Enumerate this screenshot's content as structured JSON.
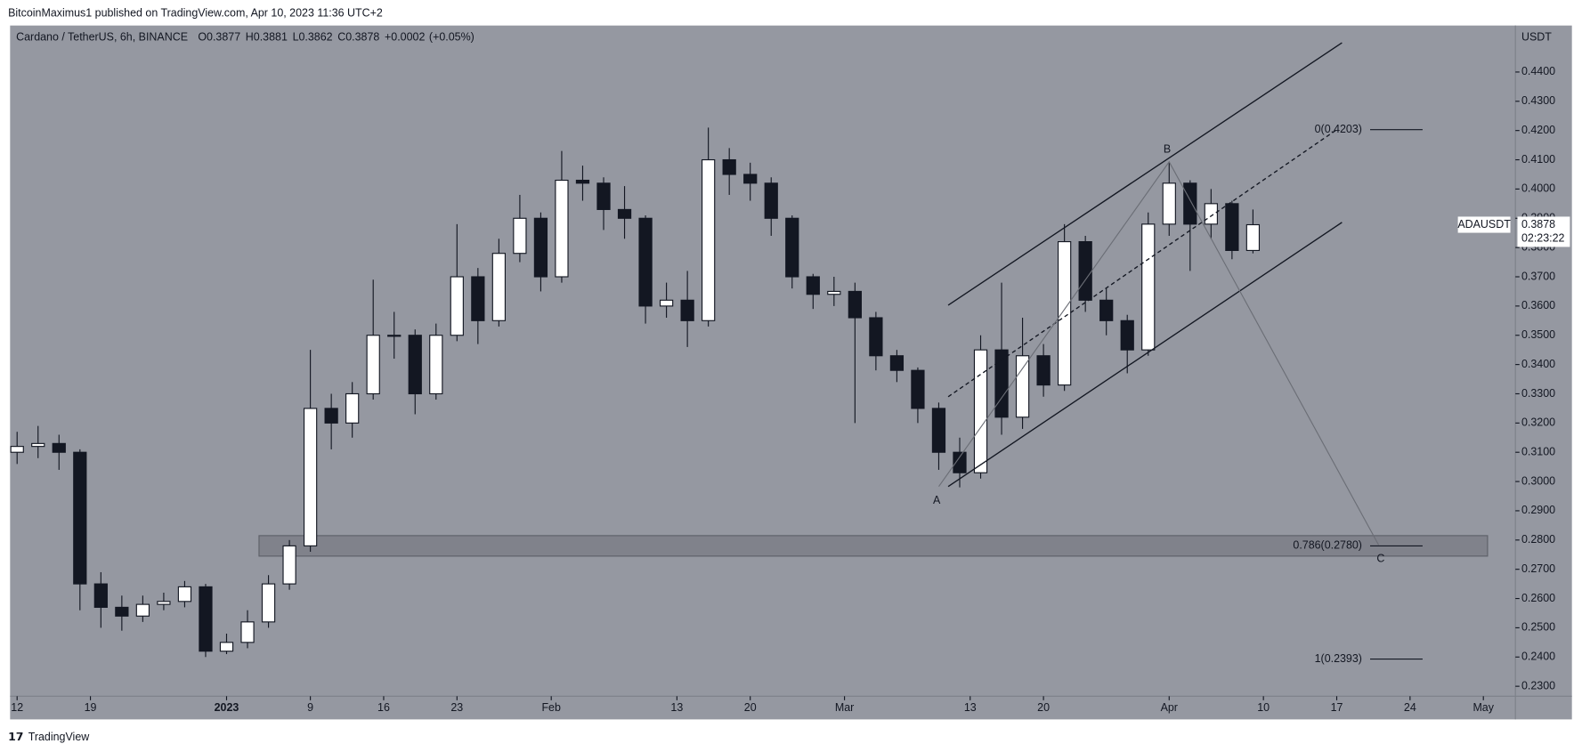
{
  "chart_data": {
    "type": "candlestick",
    "header": "BitcoinMaximus1 published on TradingView.com, Apr 10, 2023 11:36 UTC+2",
    "title": "Cardano / TetherUS, 6h, BINANCE",
    "legend_keys": [
      "O",
      "H",
      "L",
      "C"
    ],
    "legend": {
      "open": 0.3877,
      "high": 0.3881,
      "low": 0.3862,
      "close": 0.3878,
      "change": {
        "value": 0.0002,
        "label": "+0.0002"
      },
      "change_pct": {
        "value": 0.05,
        "label": "(+0.05%)"
      }
    },
    "currency": "USDT",
    "symbol": "ADAUSDT",
    "last_price": 0.3878,
    "countdown": "02:23:22",
    "footer": "TradingView",
    "up_color": "#ffffff",
    "down_color": "#131722",
    "x": [
      0,
      2,
      4,
      6,
      8,
      10,
      12,
      14,
      16,
      18,
      20,
      22,
      24,
      26,
      28,
      30,
      32,
      34,
      36,
      38,
      40,
      42,
      44,
      46,
      48,
      50,
      52,
      54,
      56,
      58,
      60,
      62,
      64,
      66,
      68,
      70,
      72,
      74,
      76,
      78,
      80,
      82,
      84,
      86,
      88,
      90,
      92,
      94,
      96,
      98,
      100,
      102,
      104,
      106,
      108,
      110,
      112,
      114,
      116,
      118
    ],
    "open": [
      0.31,
      0.312,
      0.313,
      0.31,
      0.265,
      0.257,
      0.254,
      0.258,
      0.259,
      0.264,
      0.242,
      0.245,
      0.252,
      0.265,
      0.278,
      0.325,
      0.32,
      0.33,
      0.35,
      0.35,
      0.33,
      0.35,
      0.37,
      0.355,
      0.378,
      0.39,
      0.37,
      0.403,
      0.402,
      0.393,
      0.39,
      0.36,
      0.362,
      0.355,
      0.41,
      0.405,
      0.402,
      0.39,
      0.37,
      0.364,
      0.365,
      0.356,
      0.343,
      0.338,
      0.325,
      0.31,
      0.303,
      0.345,
      0.322,
      0.343,
      0.333,
      0.382,
      0.362,
      0.355,
      0.345,
      0.388,
      0.402,
      0.388,
      0.395,
      0.379
    ],
    "high": [
      0.317,
      0.319,
      0.316,
      0.311,
      0.269,
      0.261,
      0.261,
      0.262,
      0.266,
      0.265,
      0.248,
      0.256,
      0.268,
      0.28,
      0.345,
      0.33,
      0.334,
      0.369,
      0.358,
      0.352,
      0.354,
      0.388,
      0.373,
      0.383,
      0.398,
      0.392,
      0.413,
      0.408,
      0.404,
      0.401,
      0.391,
      0.368,
      0.372,
      0.421,
      0.414,
      0.409,
      0.404,
      0.391,
      0.371,
      0.37,
      0.368,
      0.358,
      0.345,
      0.339,
      0.327,
      0.315,
      0.35,
      0.368,
      0.356,
      0.347,
      0.388,
      0.384,
      0.366,
      0.357,
      0.392,
      0.4093,
      0.403,
      0.4,
      0.396,
      0.393
    ],
    "low": [
      0.306,
      0.308,
      0.304,
      0.256,
      0.25,
      0.249,
      0.252,
      0.256,
      0.257,
      0.24,
      0.241,
      0.243,
      0.25,
      0.263,
      0.276,
      0.311,
      0.315,
      0.328,
      0.342,
      0.323,
      0.328,
      0.348,
      0.347,
      0.353,
      0.375,
      0.365,
      0.368,
      0.396,
      0.386,
      0.383,
      0.354,
      0.356,
      0.346,
      0.353,
      0.398,
      0.396,
      0.384,
      0.366,
      0.359,
      0.36,
      0.32,
      0.338,
      0.334,
      0.32,
      0.304,
      0.298,
      0.301,
      0.316,
      0.318,
      0.329,
      0.331,
      0.358,
      0.35,
      0.337,
      0.343,
      0.384,
      0.372,
      0.383,
      0.376,
      0.378
    ],
    "close": [
      0.312,
      0.313,
      0.31,
      0.265,
      0.257,
      0.254,
      0.258,
      0.259,
      0.264,
      0.242,
      0.245,
      0.252,
      0.265,
      0.278,
      0.325,
      0.32,
      0.33,
      0.35,
      0.35,
      0.33,
      0.35,
      0.37,
      0.355,
      0.378,
      0.39,
      0.37,
      0.403,
      0.402,
      0.393,
      0.39,
      0.36,
      0.362,
      0.355,
      0.41,
      0.405,
      0.402,
      0.39,
      0.37,
      0.364,
      0.365,
      0.356,
      0.343,
      0.338,
      0.325,
      0.31,
      0.303,
      0.345,
      0.322,
      0.343,
      0.333,
      0.382,
      0.362,
      0.355,
      0.345,
      0.388,
      0.402,
      0.388,
      0.395,
      0.379,
      0.3878
    ],
    "xlim": [
      -0.67,
      143.06
    ],
    "xticks": [
      {
        "value": 0,
        "label": "12"
      },
      {
        "value": 7,
        "label": "19"
      },
      {
        "value": 20,
        "label": "2023"
      },
      {
        "value": 28,
        "label": "9"
      },
      {
        "value": 35,
        "label": "16"
      },
      {
        "value": 42,
        "label": "23"
      },
      {
        "value": 51,
        "label": "Feb"
      },
      {
        "value": 63,
        "label": "13"
      },
      {
        "value": 70,
        "label": "20"
      },
      {
        "value": 79,
        "label": "Mar"
      },
      {
        "value": 91,
        "label": "13"
      },
      {
        "value": 98,
        "label": "20"
      },
      {
        "value": 110,
        "label": "Apr"
      },
      {
        "value": 119,
        "label": "10"
      },
      {
        "value": 126,
        "label": "17"
      },
      {
        "value": 133,
        "label": "24"
      },
      {
        "value": 140,
        "label": "May"
      }
    ],
    "ylim": [
      0.2266,
      0.4559
    ],
    "yticks": [
      {
        "value": 0.23,
        "label": "0.2300"
      },
      {
        "value": 0.24,
        "label": "0.2400"
      },
      {
        "value": 0.25,
        "label": "0.2500"
      },
      {
        "value": 0.26,
        "label": "0.2600"
      },
      {
        "value": 0.27,
        "label": "0.2700"
      },
      {
        "value": 0.28,
        "label": "0.2800"
      },
      {
        "value": 0.29,
        "label": "0.2900"
      },
      {
        "value": 0.3,
        "label": "0.3000"
      },
      {
        "value": 0.31,
        "label": "0.3100"
      },
      {
        "value": 0.32,
        "label": "0.3200"
      },
      {
        "value": 0.33,
        "label": "0.3300"
      },
      {
        "value": 0.34,
        "label": "0.3400"
      },
      {
        "value": 0.35,
        "label": "0.3500"
      },
      {
        "value": 0.36,
        "label": "0.3600"
      },
      {
        "value": 0.37,
        "label": "0.3700"
      },
      {
        "value": 0.38,
        "label": "0.3800"
      },
      {
        "value": 0.39,
        "label": "0.3900"
      },
      {
        "value": 0.4,
        "label": "0.4000"
      },
      {
        "value": 0.41,
        "label": "0.4100"
      },
      {
        "value": 0.42,
        "label": "0.4200"
      },
      {
        "value": 0.43,
        "label": "0.4300"
      },
      {
        "value": 0.44,
        "label": "0.4400"
      }
    ],
    "zone": {
      "x": [
        23.1,
        140.4
      ],
      "y": [
        0.2745,
        0.2815
      ]
    },
    "channel": {
      "upper": {
        "x": [
          88.9,
          126.5
        ],
        "y": [
          0.3603,
          0.45
        ]
      },
      "middle": {
        "x": [
          88.9,
          126.0
        ],
        "y": [
          0.329,
          0.4203
        ]
      },
      "lower": {
        "x": [
          88.9,
          126.5
        ],
        "y": [
          0.2983,
          0.3886
        ]
      }
    },
    "waves": [
      {
        "label": "A",
        "x": 88.0,
        "y": 0.2983
      },
      {
        "label": "B",
        "x": 110.0,
        "y": 0.4093
      },
      {
        "label": "C",
        "x": 130.0,
        "y": 0.2783
      }
    ],
    "fib_levels": [
      {
        "label": "0(0.4203)",
        "value": 0.4203
      },
      {
        "label": "0.786(0.2780)",
        "value": 0.278
      },
      {
        "label": "1(0.2393)",
        "value": 0.2393
      }
    ]
  }
}
